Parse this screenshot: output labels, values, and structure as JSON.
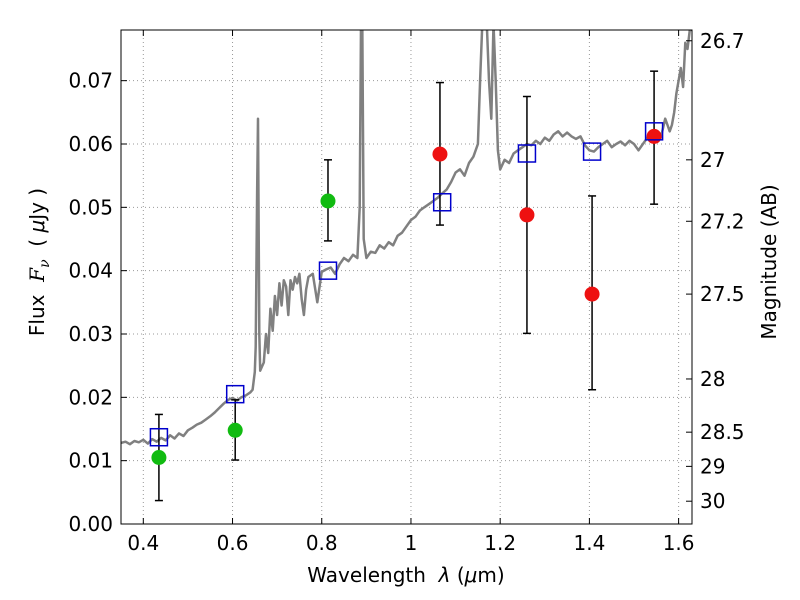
{
  "chart_data": {
    "type": "scatter",
    "title": "",
    "xlabel_parts": [
      "Wavelength  ",
      "λ",
      " (",
      "μ",
      "m)"
    ],
    "ylabel_parts": [
      "Flux  ",
      "F",
      "ν",
      "  ( ",
      "μ",
      "Jy )"
    ],
    "y2label": "Magnitude (AB)",
    "xlim": [
      0.35,
      1.63
    ],
    "ylim": [
      0.0,
      0.078
    ],
    "grid": true,
    "x_ticks": [
      0.4,
      0.6,
      0.8,
      1.0,
      1.2,
      1.4,
      1.6
    ],
    "x_tick_labels": [
      "0.4",
      "0.6",
      "0.8",
      "1",
      "1.2",
      "1.4",
      "1.6"
    ],
    "y_ticks": [
      0.0,
      0.01,
      0.02,
      0.03,
      0.04,
      0.05,
      0.06,
      0.07
    ],
    "y_tick_labels": [
      "0.00",
      "0.01",
      "0.02",
      "0.03",
      "0.04",
      "0.05",
      "0.06",
      "0.07"
    ],
    "y2_ticks": [
      {
        "label": "26.7",
        "flux": 0.0763
      },
      {
        "label": "27",
        "flux": 0.0575
      },
      {
        "label": "27.2",
        "flux": 0.0478
      },
      {
        "label": "27.5",
        "flux": 0.0363
      },
      {
        "label": "28",
        "flux": 0.0229
      },
      {
        "label": "28.5",
        "flux": 0.0145
      },
      {
        "label": "29",
        "flux": 0.0091
      },
      {
        "label": "30",
        "flux": 0.0036
      }
    ],
    "colors": {
      "model": "#808080",
      "green": "#11bb11",
      "red": "#ee1111",
      "squares": "#0000cc",
      "errorbar": "#000000",
      "grid": "#999999"
    },
    "series": [
      {
        "marker": "green-circle",
        "points": [
          {
            "x": 0.435,
            "y": 0.0105,
            "ylo": 0.0037,
            "yhi": 0.0173
          },
          {
            "x": 0.606,
            "y": 0.0148,
            "ylo": 0.0101,
            "yhi": 0.0196
          },
          {
            "x": 0.814,
            "y": 0.051,
            "ylo": 0.0447,
            "yhi": 0.0575
          }
        ]
      },
      {
        "marker": "red-circle",
        "points": [
          {
            "x": 1.065,
            "y": 0.0584,
            "ylo": 0.0472,
            "yhi": 0.0697
          },
          {
            "x": 1.26,
            "y": 0.0488,
            "ylo": 0.0301,
            "yhi": 0.0675
          },
          {
            "x": 1.406,
            "y": 0.0363,
            "ylo": 0.0212,
            "yhi": 0.0518
          },
          {
            "x": 1.545,
            "y": 0.0612,
            "ylo": 0.0505,
            "yhi": 0.0715
          }
        ]
      },
      {
        "marker": "blue-square",
        "points": [
          {
            "x": 0.435,
            "y": 0.0137
          },
          {
            "x": 0.606,
            "y": 0.0205
          },
          {
            "x": 0.814,
            "y": 0.04
          },
          {
            "x": 1.07,
            "y": 0.0508
          },
          {
            "x": 1.26,
            "y": 0.0585
          },
          {
            "x": 1.406,
            "y": 0.0588
          },
          {
            "x": 1.545,
            "y": 0.062
          }
        ]
      },
      {
        "marker": "model-line",
        "points": [
          [
            0.35,
            0.0128
          ],
          [
            0.36,
            0.013
          ],
          [
            0.37,
            0.0126
          ],
          [
            0.38,
            0.0131
          ],
          [
            0.39,
            0.0129
          ],
          [
            0.4,
            0.0133
          ],
          [
            0.41,
            0.0127
          ],
          [
            0.42,
            0.0134
          ],
          [
            0.43,
            0.013
          ],
          [
            0.44,
            0.0136
          ],
          [
            0.45,
            0.0132
          ],
          [
            0.46,
            0.014
          ],
          [
            0.47,
            0.0135
          ],
          [
            0.48,
            0.0143
          ],
          [
            0.49,
            0.0139
          ],
          [
            0.5,
            0.0148
          ],
          [
            0.51,
            0.0152
          ],
          [
            0.52,
            0.0157
          ],
          [
            0.53,
            0.016
          ],
          [
            0.54,
            0.0165
          ],
          [
            0.55,
            0.017
          ],
          [
            0.56,
            0.0176
          ],
          [
            0.57,
            0.0183
          ],
          [
            0.58,
            0.019
          ],
          [
            0.59,
            0.0196
          ],
          [
            0.6,
            0.0199
          ],
          [
            0.61,
            0.0195
          ],
          [
            0.62,
            0.02
          ],
          [
            0.63,
            0.0203
          ],
          [
            0.64,
            0.0208
          ],
          [
            0.645,
            0.0212
          ],
          [
            0.65,
            0.024
          ],
          [
            0.652,
            0.028
          ],
          [
            0.655,
            0.052
          ],
          [
            0.657,
            0.064
          ],
          [
            0.66,
            0.03
          ],
          [
            0.662,
            0.0242
          ],
          [
            0.665,
            0.0247
          ],
          [
            0.67,
            0.0255
          ],
          [
            0.675,
            0.03
          ],
          [
            0.68,
            0.027
          ],
          [
            0.685,
            0.034
          ],
          [
            0.69,
            0.0305
          ],
          [
            0.695,
            0.036
          ],
          [
            0.7,
            0.033
          ],
          [
            0.705,
            0.038
          ],
          [
            0.71,
            0.0345
          ],
          [
            0.715,
            0.0385
          ],
          [
            0.72,
            0.0375
          ],
          [
            0.725,
            0.033
          ],
          [
            0.73,
            0.0385
          ],
          [
            0.735,
            0.037
          ],
          [
            0.74,
            0.039
          ],
          [
            0.745,
            0.038
          ],
          [
            0.75,
            0.0395
          ],
          [
            0.755,
            0.0355
          ],
          [
            0.76,
            0.033
          ],
          [
            0.765,
            0.037
          ],
          [
            0.77,
            0.039
          ],
          [
            0.78,
            0.0395
          ],
          [
            0.79,
            0.035
          ],
          [
            0.8,
            0.0398
          ],
          [
            0.81,
            0.0402
          ],
          [
            0.82,
            0.0405
          ],
          [
            0.83,
            0.0395
          ],
          [
            0.84,
            0.041
          ],
          [
            0.85,
            0.042
          ],
          [
            0.86,
            0.0415
          ],
          [
            0.87,
            0.0425
          ],
          [
            0.88,
            0.042
          ],
          [
            0.885,
            0.05
          ],
          [
            0.888,
            0.079
          ],
          [
            0.891,
            0.079
          ],
          [
            0.894,
            0.045
          ],
          [
            0.9,
            0.042
          ],
          [
            0.91,
            0.043
          ],
          [
            0.92,
            0.0428
          ],
          [
            0.93,
            0.044
          ],
          [
            0.94,
            0.0435
          ],
          [
            0.95,
            0.0445
          ],
          [
            0.96,
            0.044
          ],
          [
            0.97,
            0.0455
          ],
          [
            0.98,
            0.046
          ],
          [
            0.99,
            0.047
          ],
          [
            1.0,
            0.048
          ],
          [
            1.01,
            0.0485
          ],
          [
            1.02,
            0.0495
          ],
          [
            1.03,
            0.05
          ],
          [
            1.04,
            0.0505
          ],
          [
            1.05,
            0.051
          ],
          [
            1.06,
            0.0515
          ],
          [
            1.07,
            0.0522
          ],
          [
            1.08,
            0.0528
          ],
          [
            1.09,
            0.054
          ],
          [
            1.1,
            0.0555
          ],
          [
            1.11,
            0.056
          ],
          [
            1.12,
            0.055
          ],
          [
            1.13,
            0.057
          ],
          [
            1.14,
            0.058
          ],
          [
            1.15,
            0.06
          ],
          [
            1.155,
            0.07
          ],
          [
            1.16,
            0.079
          ],
          [
            1.17,
            0.079
          ],
          [
            1.175,
            0.07
          ],
          [
            1.18,
            0.064
          ],
          [
            1.185,
            0.079
          ],
          [
            1.19,
            0.07
          ],
          [
            1.195,
            0.059
          ],
          [
            1.2,
            0.056
          ],
          [
            1.21,
            0.0575
          ],
          [
            1.22,
            0.057
          ],
          [
            1.23,
            0.0585
          ],
          [
            1.24,
            0.059
          ],
          [
            1.25,
            0.0595
          ],
          [
            1.26,
            0.06
          ],
          [
            1.27,
            0.0598
          ],
          [
            1.28,
            0.0605
          ],
          [
            1.29,
            0.06
          ],
          [
            1.3,
            0.061
          ],
          [
            1.31,
            0.0605
          ],
          [
            1.32,
            0.0615
          ],
          [
            1.33,
            0.062
          ],
          [
            1.34,
            0.0612
          ],
          [
            1.35,
            0.0618
          ],
          [
            1.36,
            0.0612
          ],
          [
            1.37,
            0.0608
          ],
          [
            1.38,
            0.0612
          ],
          [
            1.39,
            0.0598
          ],
          [
            1.4,
            0.059
          ],
          [
            1.41,
            0.0588
          ],
          [
            1.42,
            0.0595
          ],
          [
            1.43,
            0.06
          ],
          [
            1.44,
            0.0605
          ],
          [
            1.45,
            0.0595
          ],
          [
            1.46,
            0.06
          ],
          [
            1.47,
            0.0604
          ],
          [
            1.48,
            0.0598
          ],
          [
            1.49,
            0.0605
          ],
          [
            1.5,
            0.06
          ],
          [
            1.51,
            0.059
          ],
          [
            1.52,
            0.06
          ],
          [
            1.53,
            0.061
          ],
          [
            1.54,
            0.0615
          ],
          [
            1.55,
            0.062
          ],
          [
            1.56,
            0.061
          ],
          [
            1.565,
            0.0625
          ],
          [
            1.57,
            0.064
          ],
          [
            1.575,
            0.063
          ],
          [
            1.58,
            0.062
          ],
          [
            1.585,
            0.063
          ],
          [
            1.59,
            0.065
          ],
          [
            1.595,
            0.068
          ],
          [
            1.6,
            0.07
          ],
          [
            1.605,
            0.072
          ],
          [
            1.61,
            0.069
          ],
          [
            1.615,
            0.076
          ],
          [
            1.62,
            0.075
          ],
          [
            1.625,
            0.078
          ],
          [
            1.63,
            0.078
          ]
        ]
      }
    ]
  }
}
